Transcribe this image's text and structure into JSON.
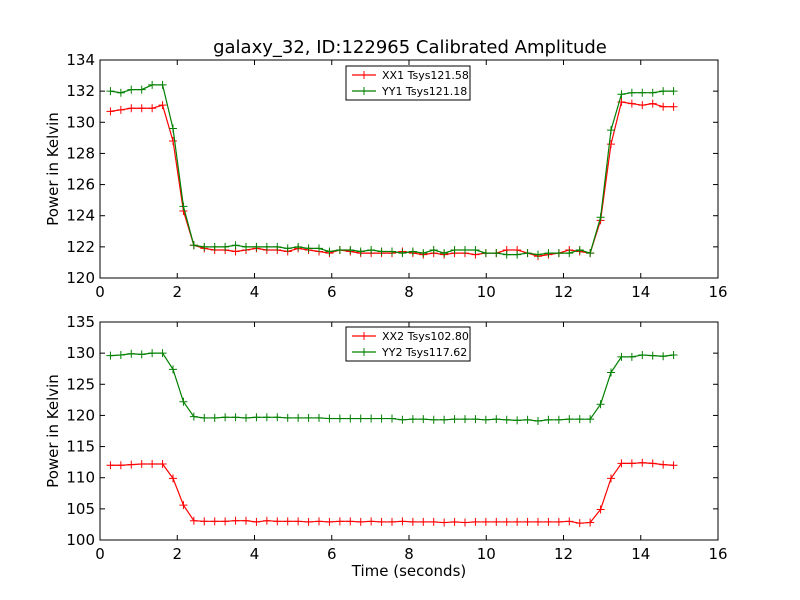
{
  "title": "galaxy_32, ID:122965 Calibrated Amplitude",
  "colors": {
    "red": "#ff0000",
    "green": "#008000"
  },
  "chart_data": [
    {
      "type": "line",
      "xlabel": "",
      "ylabel": "Power in Kelvin",
      "xlim": [
        0,
        16
      ],
      "ylim": [
        120,
        134
      ],
      "xticks": [
        "0",
        "2",
        "4",
        "6",
        "8",
        "10",
        "12",
        "14",
        "16"
      ],
      "yticks": [
        "120",
        "122",
        "124",
        "126",
        "128",
        "130",
        "132",
        "134"
      ],
      "legend_position": "top-center",
      "x": [
        0.27,
        0.54,
        0.81,
        1.08,
        1.35,
        1.62,
        1.89,
        2.16,
        2.43,
        2.7,
        2.97,
        3.24,
        3.51,
        3.78,
        4.05,
        4.32,
        4.59,
        4.86,
        5.13,
        5.4,
        5.67,
        5.94,
        6.21,
        6.48,
        6.75,
        7.02,
        7.29,
        7.56,
        7.83,
        8.1,
        8.37,
        8.64,
        8.91,
        9.18,
        9.45,
        9.72,
        9.99,
        10.26,
        10.53,
        10.8,
        11.07,
        11.34,
        11.61,
        11.88,
        12.15,
        12.42,
        12.69,
        12.96,
        13.23,
        13.5,
        13.77,
        14.04,
        14.31,
        14.58,
        14.85
      ],
      "series": [
        {
          "name": "XX1 Tsys121.58",
          "color": "#ff0000",
          "values": [
            130.7,
            130.8,
            130.9,
            130.9,
            130.9,
            131.1,
            128.8,
            124.3,
            122.1,
            121.9,
            121.8,
            121.8,
            121.7,
            121.8,
            121.9,
            121.8,
            121.8,
            121.7,
            121.9,
            121.8,
            121.7,
            121.6,
            121.8,
            121.7,
            121.6,
            121.6,
            121.6,
            121.6,
            121.7,
            121.6,
            121.5,
            121.6,
            121.5,
            121.6,
            121.6,
            121.5,
            121.6,
            121.6,
            121.8,
            121.8,
            121.6,
            121.4,
            121.5,
            121.6,
            121.8,
            121.7,
            121.6,
            123.7,
            128.6,
            131.3,
            131.2,
            131.1,
            131.2,
            131.0,
            131.0
          ]
        },
        {
          "name": "YY1 Tsys121.18",
          "color": "#008000",
          "values": [
            132.0,
            131.9,
            132.1,
            132.1,
            132.4,
            132.4,
            129.6,
            124.6,
            122.1,
            122.0,
            122.0,
            122.0,
            122.1,
            122.0,
            122.0,
            122.0,
            122.0,
            121.9,
            122.0,
            121.9,
            121.9,
            121.7,
            121.8,
            121.8,
            121.7,
            121.8,
            121.7,
            121.7,
            121.6,
            121.7,
            121.6,
            121.8,
            121.6,
            121.8,
            121.8,
            121.8,
            121.6,
            121.6,
            121.5,
            121.5,
            121.6,
            121.5,
            121.6,
            121.6,
            121.6,
            121.8,
            121.6,
            123.9,
            129.5,
            131.8,
            131.9,
            131.9,
            131.9,
            132.0,
            132.0
          ]
        }
      ]
    },
    {
      "type": "line",
      "xlabel": "Time (seconds)",
      "ylabel": "Power in Kelvin",
      "xlim": [
        0,
        16
      ],
      "ylim": [
        100,
        135
      ],
      "xticks": [
        "0",
        "2",
        "4",
        "6",
        "8",
        "10",
        "12",
        "14",
        "16"
      ],
      "yticks": [
        "100",
        "105",
        "110",
        "115",
        "120",
        "125",
        "130",
        "135"
      ],
      "legend_position": "top-center",
      "x": [
        0.27,
        0.54,
        0.81,
        1.08,
        1.35,
        1.62,
        1.89,
        2.16,
        2.43,
        2.7,
        2.97,
        3.24,
        3.51,
        3.78,
        4.05,
        4.32,
        4.59,
        4.86,
        5.13,
        5.4,
        5.67,
        5.94,
        6.21,
        6.48,
        6.75,
        7.02,
        7.29,
        7.56,
        7.83,
        8.1,
        8.37,
        8.64,
        8.91,
        9.18,
        9.45,
        9.72,
        9.99,
        10.26,
        10.53,
        10.8,
        11.07,
        11.34,
        11.61,
        11.88,
        12.15,
        12.42,
        12.69,
        12.96,
        13.23,
        13.5,
        13.77,
        14.04,
        14.31,
        14.58,
        14.85
      ],
      "series": [
        {
          "name": "XX2 Tsys102.80",
          "color": "#ff0000",
          "values": [
            112.0,
            112.0,
            112.1,
            112.2,
            112.2,
            112.2,
            109.9,
            105.6,
            103.1,
            103.0,
            103.0,
            103.0,
            103.1,
            103.1,
            102.9,
            103.1,
            103.0,
            103.0,
            103.0,
            102.9,
            103.0,
            102.9,
            103.0,
            103.0,
            102.9,
            103.0,
            102.9,
            102.9,
            103.0,
            102.9,
            102.9,
            102.9,
            102.8,
            102.9,
            102.8,
            102.9,
            102.9,
            102.9,
            102.9,
            102.9,
            102.9,
            102.9,
            102.9,
            102.9,
            103.0,
            102.7,
            102.8,
            104.9,
            109.9,
            112.3,
            112.3,
            112.4,
            112.3,
            112.1,
            112.0
          ]
        },
        {
          "name": "YY2 Tsys117.62",
          "color": "#008000",
          "values": [
            129.6,
            129.7,
            129.9,
            129.8,
            130.0,
            130.0,
            127.4,
            122.2,
            119.8,
            119.6,
            119.6,
            119.7,
            119.7,
            119.6,
            119.7,
            119.7,
            119.7,
            119.6,
            119.6,
            119.6,
            119.6,
            119.5,
            119.5,
            119.5,
            119.5,
            119.5,
            119.5,
            119.5,
            119.3,
            119.4,
            119.4,
            119.3,
            119.3,
            119.4,
            119.4,
            119.4,
            119.3,
            119.4,
            119.3,
            119.2,
            119.3,
            119.1,
            119.3,
            119.3,
            119.4,
            119.4,
            119.4,
            121.8,
            126.9,
            129.4,
            129.4,
            129.7,
            129.6,
            129.5,
            129.7
          ]
        }
      ]
    }
  ]
}
